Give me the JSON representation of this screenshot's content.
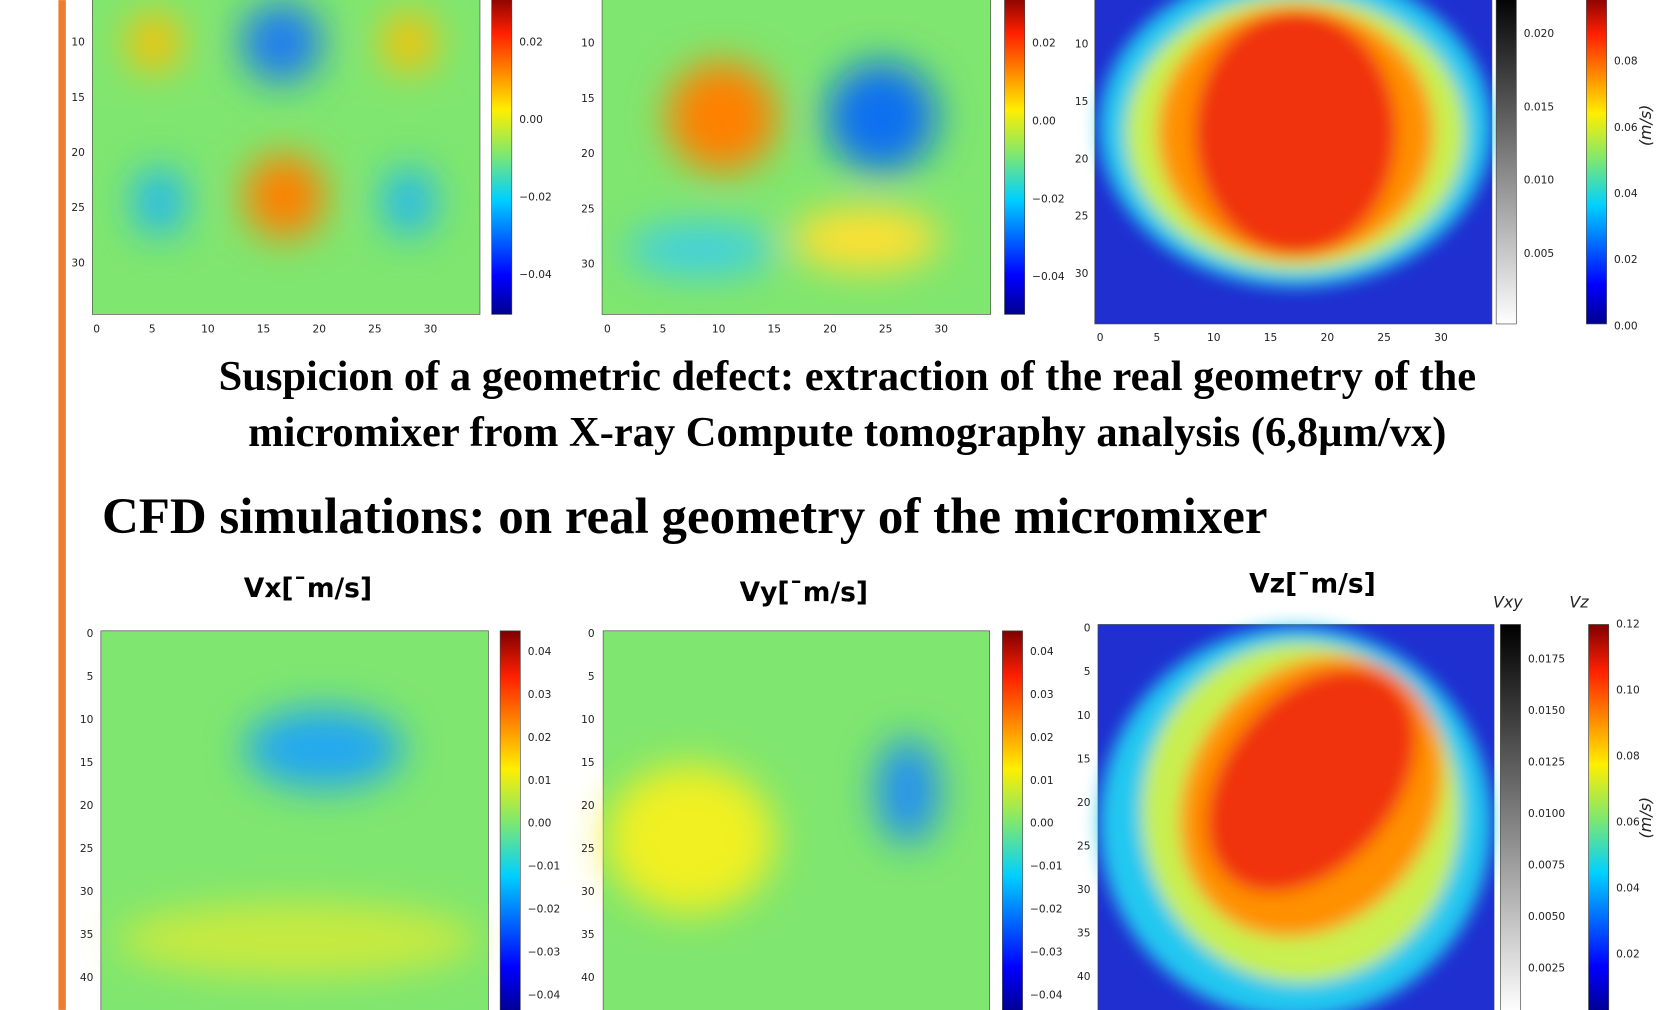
{
  "top_row": {
    "panels": [
      {
        "y_ticks": [
          "10",
          "15",
          "20",
          "25",
          "30"
        ],
        "x_ticks": [
          "0",
          "5",
          "10",
          "15",
          "20",
          "25",
          "30"
        ],
        "colorbar_ticks": [
          "0.02",
          "0.00",
          "−0.02",
          "−0.04"
        ]
      },
      {
        "y_ticks": [
          "10",
          "15",
          "20",
          "25",
          "30"
        ],
        "x_ticks": [
          "0",
          "5",
          "10",
          "15",
          "20",
          "25",
          "30"
        ],
        "colorbar_ticks": [
          "0.02",
          "0.00",
          "−0.02",
          "−0.04"
        ]
      },
      {
        "y_ticks": [
          "10",
          "15",
          "20",
          "25",
          "30"
        ],
        "x_ticks": [
          "0",
          "5",
          "10",
          "15",
          "20",
          "25",
          "30"
        ],
        "greybar_ticks": [
          "0.020",
          "0.015",
          "0.010",
          "0.005"
        ],
        "colorbar_ticks": [
          "0.08",
          "0.06",
          "0.04",
          "0.02",
          "0.00"
        ],
        "unit_label": "(m/s)"
      }
    ]
  },
  "defect_note": {
    "line1": "Suspicion of a geometric defect: extraction of the real geometry of the",
    "line2": "micromixer from X-ray Compute tomography analysis (6,8µm/vx)"
  },
  "cfd_heading": "CFD simulations: on real geometry of the micromixer",
  "bottom_row": {
    "panels": [
      {
        "title": "Vx[¯m/s]",
        "y_ticks": [
          "0",
          "5",
          "10",
          "15",
          "20",
          "25",
          "30",
          "35",
          "40"
        ],
        "colorbar_ticks": [
          "0.04",
          "0.03",
          "0.02",
          "0.01",
          "0.00",
          "−0.01",
          "−0.02",
          "−0.03",
          "−0.04"
        ]
      },
      {
        "title": "Vy[¯m/s]",
        "y_ticks": [
          "0",
          "5",
          "10",
          "15",
          "20",
          "25",
          "30",
          "35",
          "40"
        ],
        "colorbar_ticks": [
          "0.04",
          "0.03",
          "0.02",
          "0.01",
          "0.00",
          "−0.01",
          "−0.02",
          "−0.03",
          "−0.04"
        ]
      },
      {
        "title": "Vz[¯m/s]",
        "y_ticks": [
          "0",
          "5",
          "10",
          "15",
          "20",
          "25",
          "30",
          "35",
          "40"
        ],
        "greybar_title": "Vxy",
        "colorbar_title": "Vz",
        "greybar_ticks": [
          "0.0175",
          "0.0150",
          "0.0125",
          "0.0100",
          "0.0075",
          "0.0050",
          "0.0025"
        ],
        "colorbar_ticks": [
          "0.12",
          "0.10",
          "0.08",
          "0.06",
          "0.04",
          "0.02"
        ],
        "unit_label": "(m/s)"
      }
    ]
  }
}
